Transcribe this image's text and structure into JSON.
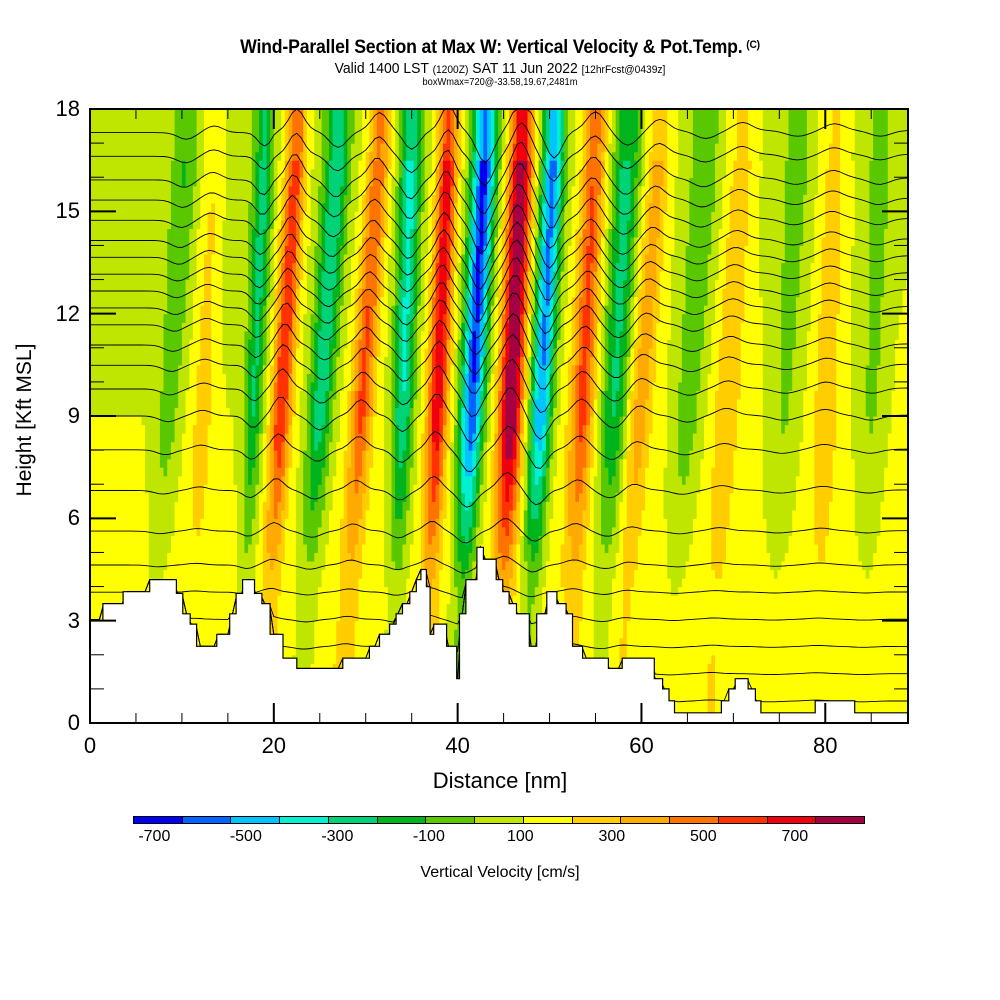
{
  "header": {
    "title": "Wind-Parallel Section at Max W: Vertical Velocity & Pot.Temp.",
    "copyright_mark": "(C)",
    "valid_prefix": "Valid 1400 LST",
    "valid_utc": "(1200Z)",
    "valid_date": "SAT 11 Jun 2022",
    "forecast_info": "[12hrFcst@0439z]",
    "box_info": "boxWmax=720@-33.58,19.67,2481m"
  },
  "chart_data": {
    "type": "heatmap",
    "title": "Wind-Parallel Section at Max W: Vertical Velocity & Pot.Temp.",
    "xlabel": "Distance [nm]",
    "ylabel": "Height [Kft MSL]",
    "xlim": [
      0,
      89
    ],
    "ylim": [
      0,
      18
    ],
    "x_ticks": [
      "0",
      "20",
      "40",
      "60",
      "80"
    ],
    "x_tick_values": [
      0,
      20,
      40,
      60,
      80
    ],
    "y_ticks": [
      "0",
      "3",
      "6",
      "9",
      "12",
      "15",
      "18"
    ],
    "y_tick_values": [
      0,
      3,
      6,
      9,
      12,
      15,
      18
    ],
    "colorbar": {
      "title": "Vertical Velocity [cm/s]",
      "levels": [
        -800,
        -700,
        -600,
        -500,
        -400,
        -300,
        -200,
        -100,
        0,
        100,
        200,
        300,
        400,
        500,
        600,
        700,
        800
      ],
      "labels": [
        "-700",
        "-500",
        "-300",
        "-100",
        "100",
        "300",
        "500",
        "700"
      ],
      "label_values": [
        -700,
        -500,
        -300,
        -100,
        100,
        300,
        500,
        700
      ],
      "colors": [
        "#0000f0",
        "#0064ff",
        "#00c3ff",
        "#00f0d2",
        "#00d278",
        "#00b41e",
        "#5ac800",
        "#bee600",
        "#ffff00",
        "#ffcd00",
        "#ffaa00",
        "#ff7300",
        "#ff3200",
        "#f0000f",
        "#a50041"
      ]
    },
    "w_ridges_cm_s": [
      {
        "x_top_nm": 10.5,
        "x_bottom_nm": 6.5,
        "amp": -150,
        "width_nm": 1.3
      },
      {
        "x_top_nm": 13.5,
        "x_bottom_nm": 11.0,
        "amp": 150,
        "width_nm": 1.3
      },
      {
        "x_top_nm": 19.0,
        "x_bottom_nm": 16.5,
        "amp": -300,
        "width_nm": 1.0
      },
      {
        "x_top_nm": 22.5,
        "x_bottom_nm": 19.0,
        "amp": 480,
        "width_nm": 1.1
      },
      {
        "x_top_nm": 27.0,
        "x_bottom_nm": 23.0,
        "amp": -380,
        "width_nm": 1.4
      },
      {
        "x_top_nm": 31.5,
        "x_bottom_nm": 27.5,
        "amp": 400,
        "width_nm": 1.2
      },
      {
        "x_top_nm": 35.0,
        "x_bottom_nm": 33.0,
        "amp": -420,
        "width_nm": 1.2
      },
      {
        "x_top_nm": 39.0,
        "x_bottom_nm": 36.5,
        "amp": 560,
        "width_nm": 1.1
      },
      {
        "x_top_nm": 43.0,
        "x_bottom_nm": 40.0,
        "amp": -720,
        "width_nm": 1.3
      },
      {
        "x_top_nm": 47.0,
        "x_bottom_nm": 44.5,
        "amp": 720,
        "width_nm": 1.3
      },
      {
        "x_top_nm": 50.5,
        "x_bottom_nm": 47.5,
        "amp": -620,
        "width_nm": 1.2
      },
      {
        "x_top_nm": 55.0,
        "x_bottom_nm": 52.0,
        "amp": 420,
        "width_nm": 1.3
      },
      {
        "x_top_nm": 58.5,
        "x_bottom_nm": 55.5,
        "amp": -330,
        "width_nm": 1.5
      },
      {
        "x_top_nm": 62.0,
        "x_bottom_nm": 57.5,
        "amp": 250,
        "width_nm": 1.3
      },
      {
        "x_top_nm": 67.0,
        "x_bottom_nm": 63.0,
        "amp": -180,
        "width_nm": 1.6
      },
      {
        "x_top_nm": 71.0,
        "x_bottom_nm": 67.5,
        "amp": 180,
        "width_nm": 1.4
      },
      {
        "x_top_nm": 77.0,
        "x_bottom_nm": 74.0,
        "amp": -130,
        "width_nm": 1.8
      },
      {
        "x_top_nm": 81.0,
        "x_bottom_nm": 79.0,
        "amp": 150,
        "width_nm": 1.5
      },
      {
        "x_top_nm": 86.0,
        "x_bottom_nm": 84.0,
        "amp": -130,
        "width_nm": 1.6
      }
    ],
    "background_w_cm_s": {
      "upper_left": -60,
      "lower": 60
    },
    "pot_temp_contours_kft": [
      0.6,
      1.4,
      2.2,
      3.0,
      3.8,
      4.6,
      5.6,
      6.8,
      8.0,
      9.0,
      9.8,
      10.5,
      11.1,
      11.7,
      12.2,
      12.7,
      13.2,
      13.7,
      14.2,
      14.8,
      15.4,
      16.0,
      16.7,
      17.4
    ],
    "terrain_kft": [
      [
        0,
        3.0
      ],
      [
        1.4,
        3.5
      ],
      [
        3.6,
        3.85
      ],
      [
        6.5,
        4.2
      ],
      [
        9.4,
        3.8
      ],
      [
        10.1,
        3.2
      ],
      [
        10.9,
        2.9
      ],
      [
        11.6,
        2.25
      ],
      [
        13.8,
        2.6
      ],
      [
        15.2,
        3.2
      ],
      [
        15.9,
        3.8
      ],
      [
        16.6,
        4.2
      ],
      [
        17.9,
        3.8
      ],
      [
        18.7,
        3.5
      ],
      [
        19.6,
        2.6
      ],
      [
        21.0,
        1.9
      ],
      [
        22.5,
        1.6
      ],
      [
        27.5,
        1.9
      ],
      [
        30.4,
        2.25
      ],
      [
        31.5,
        2.6
      ],
      [
        32.6,
        2.9
      ],
      [
        33.3,
        3.2
      ],
      [
        34.0,
        3.5
      ],
      [
        34.8,
        3.85
      ],
      [
        35.5,
        4.2
      ],
      [
        36.0,
        4.5
      ],
      [
        36.6,
        4.0
      ],
      [
        37.0,
        2.6
      ],
      [
        37.4,
        2.9
      ],
      [
        38.8,
        2.25
      ],
      [
        39.9,
        1.3
      ],
      [
        40.2,
        3.2
      ],
      [
        40.9,
        4.2
      ],
      [
        42.1,
        5.15
      ],
      [
        42.8,
        4.8
      ],
      [
        44.2,
        4.2
      ],
      [
        44.9,
        3.85
      ],
      [
        45.6,
        3.5
      ],
      [
        46.4,
        3.2
      ],
      [
        47.8,
        2.25
      ],
      [
        48.6,
        3.2
      ],
      [
        49.7,
        3.85
      ],
      [
        50.8,
        3.5
      ],
      [
        51.8,
        3.2
      ],
      [
        52.5,
        2.25
      ],
      [
        53.6,
        1.9
      ],
      [
        56.4,
        1.6
      ],
      [
        57.9,
        1.9
      ],
      [
        61.4,
        1.3
      ],
      [
        62.3,
        1.0
      ],
      [
        63.0,
        0.65
      ],
      [
        63.6,
        0.3
      ],
      [
        68.7,
        0.65
      ],
      [
        69.5,
        1.0
      ],
      [
        70.2,
        1.3
      ],
      [
        71.6,
        1.0
      ],
      [
        72.4,
        0.65
      ],
      [
        73.0,
        0.3
      ],
      [
        78.9,
        0.65
      ],
      [
        83.2,
        0.3
      ],
      [
        89,
        0.3
      ]
    ]
  }
}
